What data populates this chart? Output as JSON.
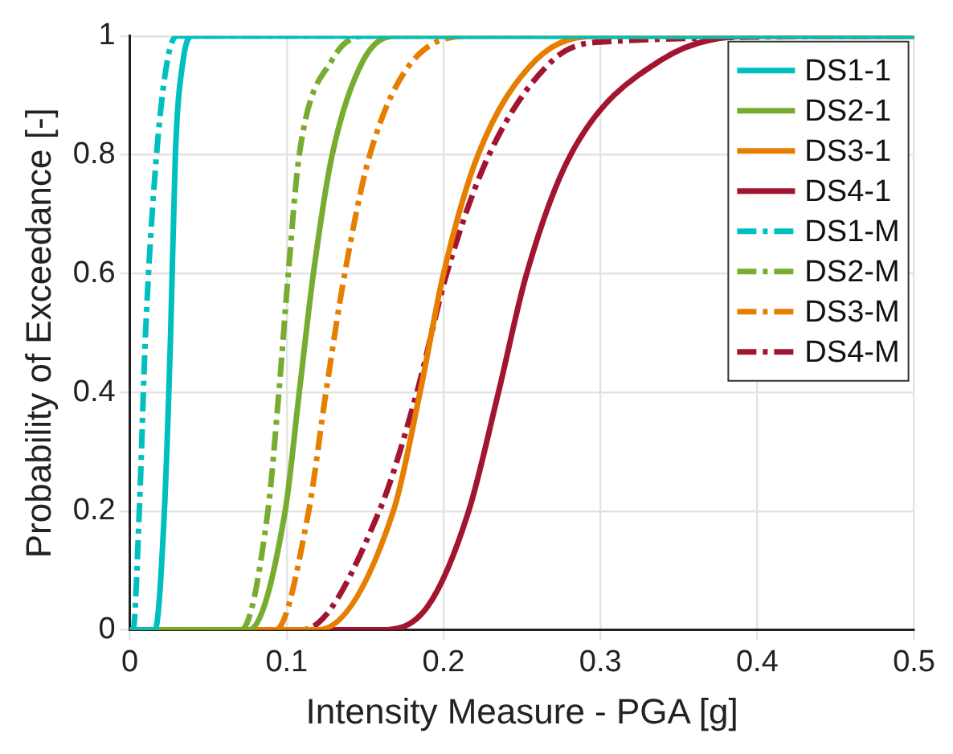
{
  "chart_data": {
    "type": "line",
    "xlabel": "Intensity Measure - PGA [g]",
    "ylabel": "Probability of Exceedance [-]",
    "xlim": [
      0,
      0.5
    ],
    "xticks": [
      0,
      0.1,
      0.2,
      0.3,
      0.4,
      0.5
    ],
    "ylim": [
      0,
      1
    ],
    "yticks": [
      0,
      0.2,
      0.4,
      0.6,
      0.8,
      1
    ],
    "grid": true,
    "legend": "top right",
    "marker": "none",
    "series": [
      {
        "name": "DS1-1",
        "color": "#00bfbf",
        "line_style": "solid",
        "x": [
          0,
          0.016,
          0.022,
          0.026,
          0.029,
          0.034,
          0.04,
          0.5
        ],
        "values": [
          0,
          0,
          0.2,
          0.5,
          0.8,
          0.96,
          1,
          1
        ]
      },
      {
        "name": "DS2-1",
        "color": "#77ac30",
        "line_style": "solid",
        "x": [
          0,
          0.076,
          0.099,
          0.108,
          0.117,
          0.129,
          0.149,
          0.17,
          0.5
        ],
        "values": [
          0,
          0,
          0.2,
          0.4,
          0.6,
          0.8,
          0.96,
          1,
          1
        ]
      },
      {
        "name": "DS3-1",
        "color": "#e67e00",
        "line_style": "solid",
        "x": [
          0,
          0.12,
          0.168,
          0.185,
          0.2,
          0.222,
          0.259,
          0.3,
          0.5
        ],
        "values": [
          0,
          0,
          0.2,
          0.4,
          0.6,
          0.8,
          0.96,
          1,
          1
        ]
      },
      {
        "name": "DS4-1",
        "color": "#a2142f",
        "line_style": "solid",
        "x": [
          0,
          0.16,
          0.19,
          0.216,
          0.235,
          0.253,
          0.281,
          0.339,
          0.4,
          0.5
        ],
        "values": [
          0,
          0,
          0.04,
          0.2,
          0.4,
          0.6,
          0.8,
          0.96,
          1,
          1
        ]
      },
      {
        "name": "DS1-M",
        "color": "#00bfbf",
        "line_style": "dashdot",
        "x": [
          0,
          0.002,
          0.006,
          0.01,
          0.017,
          0.024,
          0.03,
          0.5
        ],
        "values": [
          0,
          0,
          0.2,
          0.5,
          0.8,
          0.96,
          1,
          1
        ]
      },
      {
        "name": "DS2-M",
        "color": "#77ac30",
        "line_style": "dashdot",
        "x": [
          0,
          0.071,
          0.088,
          0.095,
          0.101,
          0.108,
          0.129,
          0.15,
          0.5
        ],
        "values": [
          0,
          0,
          0.2,
          0.4,
          0.6,
          0.8,
          0.96,
          1,
          1
        ]
      },
      {
        "name": "DS3-M",
        "color": "#e67e00",
        "line_style": "dashdot",
        "x": [
          0,
          0.093,
          0.114,
          0.125,
          0.137,
          0.153,
          0.181,
          0.22,
          0.5
        ],
        "values": [
          0,
          0,
          0.2,
          0.4,
          0.6,
          0.8,
          0.96,
          1,
          1
        ]
      },
      {
        "name": "DS4-M",
        "color": "#a2142f",
        "line_style": "dashdot",
        "x": [
          0,
          0.11,
          0.159,
          0.183,
          0.202,
          0.229,
          0.27,
          0.3,
          0.5
        ],
        "values": [
          0,
          0,
          0.2,
          0.4,
          0.6,
          0.8,
          0.96,
          0.99,
          1
        ]
      }
    ]
  }
}
